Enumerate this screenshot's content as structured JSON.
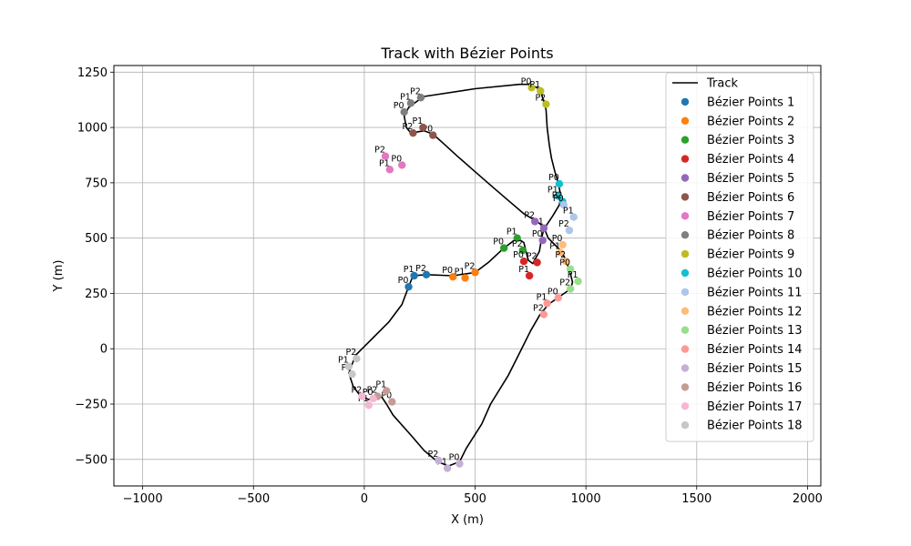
{
  "chart_data": {
    "type": "scatter",
    "title": "Track with Bézier Points",
    "xlabel": "X (m)",
    "ylabel": "Y (m)",
    "xlim": [
      -1130,
      2060
    ],
    "ylim": [
      -620,
      1280
    ],
    "xticks": [
      -1000,
      -500,
      0,
      500,
      1000,
      1500,
      2000
    ],
    "yticks": [
      -500,
      -250,
      0,
      250,
      500,
      750,
      1000,
      1250
    ],
    "grid": true,
    "legend_position": "top-right",
    "track": {
      "name": "Track",
      "color": "#000000",
      "points": [
        [
          200,
          280
        ],
        [
          220,
          330
        ],
        [
          280,
          335
        ],
        [
          400,
          330
        ],
        [
          500,
          345
        ],
        [
          560,
          390
        ],
        [
          630,
          455
        ],
        [
          690,
          500
        ],
        [
          720,
          480
        ],
        [
          740,
          400
        ],
        [
          760,
          385
        ],
        [
          790,
          440
        ],
        [
          800,
          500
        ],
        [
          810,
          540
        ],
        [
          850,
          600
        ],
        [
          880,
          650
        ],
        [
          885,
          700
        ],
        [
          875,
          750
        ],
        [
          860,
          800
        ],
        [
          845,
          860
        ],
        [
          835,
          920
        ],
        [
          825,
          1000
        ],
        [
          820,
          1080
        ],
        [
          800,
          1150
        ],
        [
          780,
          1180
        ],
        [
          740,
          1195
        ],
        [
          700,
          1195
        ],
        [
          500,
          1175
        ],
        [
          270,
          1140
        ],
        [
          240,
          1120
        ],
        [
          200,
          1090
        ],
        [
          180,
          1050
        ],
        [
          190,
          1000
        ],
        [
          210,
          975
        ],
        [
          270,
          985
        ],
        [
          310,
          970
        ],
        [
          360,
          925
        ],
        [
          420,
          870
        ],
        [
          500,
          800
        ],
        [
          580,
          730
        ],
        [
          650,
          670
        ],
        [
          720,
          610
        ],
        [
          780,
          575
        ],
        [
          810,
          550
        ],
        [
          830,
          500
        ],
        [
          860,
          470
        ],
        [
          890,
          440
        ],
        [
          910,
          400
        ],
        [
          930,
          340
        ],
        [
          940,
          300
        ],
        [
          930,
          270
        ],
        [
          880,
          235
        ],
        [
          830,
          200
        ],
        [
          790,
          150
        ],
        [
          750,
          80
        ],
        [
          700,
          -20
        ],
        [
          650,
          -120
        ],
        [
          570,
          -250
        ],
        [
          530,
          -340
        ],
        [
          460,
          -450
        ],
        [
          430,
          -510
        ],
        [
          380,
          -530
        ],
        [
          330,
          -510
        ],
        [
          270,
          -460
        ],
        [
          210,
          -390
        ],
        [
          130,
          -300
        ],
        [
          100,
          -250
        ],
        [
          80,
          -220
        ],
        [
          50,
          -210
        ],
        [
          20,
          -230
        ],
        [
          -20,
          -210
        ],
        [
          -50,
          -170
        ],
        [
          -70,
          -110
        ],
        [
          -40,
          -30
        ],
        [
          30,
          40
        ],
        [
          110,
          120
        ],
        [
          170,
          200
        ],
        [
          200,
          280
        ]
      ]
    },
    "series": [
      {
        "name": "Bézier Points 1",
        "color": "#1f77b4",
        "points": [
          [
            200,
            280,
            "P0"
          ],
          [
            225,
            330,
            "P1"
          ],
          [
            280,
            335,
            "P2"
          ]
        ]
      },
      {
        "name": "Bézier Points 2",
        "color": "#ff7f0e",
        "points": [
          [
            400,
            325,
            "P0"
          ],
          [
            455,
            320,
            "P1"
          ],
          [
            500,
            345,
            "P2"
          ]
        ]
      },
      {
        "name": "Bézier Points 3",
        "color": "#2ca02c",
        "points": [
          [
            630,
            455,
            "P0"
          ],
          [
            690,
            500,
            "P1"
          ],
          [
            715,
            445,
            "P2"
          ]
        ]
      },
      {
        "name": "Bézier Points 4",
        "color": "#d62728",
        "points": [
          [
            720,
            395,
            "P0"
          ],
          [
            745,
            330,
            "P1"
          ],
          [
            780,
            390,
            "P2"
          ]
        ]
      },
      {
        "name": "Bézier Points 5",
        "color": "#9467bd",
        "points": [
          [
            805,
            490,
            "P0"
          ],
          [
            810,
            545,
            "P1"
          ],
          [
            770,
            575,
            "P2"
          ]
        ]
      },
      {
        "name": "Bézier Points 6",
        "color": "#8c564b",
        "points": [
          [
            310,
            965,
            "P0"
          ],
          [
            265,
            1000,
            "P1"
          ],
          [
            220,
            975,
            "P2"
          ]
        ]
      },
      {
        "name": "Bézier Points 7",
        "color": "#e377c2",
        "points": [
          [
            170,
            830,
            "P0"
          ],
          [
            115,
            810,
            "P1"
          ],
          [
            95,
            870,
            "P2"
          ]
        ]
      },
      {
        "name": "Bézier Points 8",
        "color": "#7f7f7f",
        "points": [
          [
            180,
            1070,
            "P0"
          ],
          [
            210,
            1110,
            "P1"
          ],
          [
            255,
            1135,
            "P2"
          ]
        ]
      },
      {
        "name": "Bézier Points 9",
        "color": "#bcbd22",
        "points": [
          [
            755,
            1180,
            "P0"
          ],
          [
            795,
            1165,
            "P1"
          ],
          [
            820,
            1105,
            "P2"
          ]
        ]
      },
      {
        "name": "Bézier Points 10",
        "color": "#17becf",
        "points": [
          [
            880,
            745,
            "P0"
          ],
          [
            875,
            690,
            "P1"
          ],
          [
            895,
            665,
            "P2"
          ]
        ]
      },
      {
        "name": "Bézier Points 11",
        "color": "#aec7e8",
        "points": [
          [
            900,
            650,
            "P0"
          ],
          [
            945,
            595,
            "P1"
          ],
          [
            925,
            535,
            "P2"
          ]
        ]
      },
      {
        "name": "Bézier Points 12",
        "color": "#ffbb78",
        "points": [
          [
            895,
            470,
            "P0"
          ],
          [
            885,
            435,
            "P1"
          ],
          [
            910,
            395,
            "P2"
          ]
        ]
      },
      {
        "name": "Bézier Points 13",
        "color": "#98df8a",
        "points": [
          [
            930,
            360,
            "P0"
          ],
          [
            965,
            305,
            "P1"
          ],
          [
            930,
            270,
            "P2"
          ]
        ]
      },
      {
        "name": "Bézier Points 14",
        "color": "#ff9896",
        "points": [
          [
            875,
            230,
            "P0"
          ],
          [
            825,
            205,
            "P1"
          ],
          [
            810,
            155,
            "P2"
          ]
        ]
      },
      {
        "name": "Bézier Points 15",
        "color": "#c5b0d5",
        "points": [
          [
            430,
            -520,
            "P0"
          ],
          [
            375,
            -540,
            "P1"
          ],
          [
            335,
            -505,
            "P2"
          ]
        ]
      },
      {
        "name": "Bézier Points 16",
        "color": "#c49c94",
        "points": [
          [
            125,
            -240,
            "P0"
          ],
          [
            100,
            -190,
            "P1"
          ],
          [
            60,
            -215,
            "P2"
          ]
        ]
      },
      {
        "name": "Bézier Points 17",
        "color": "#f7b6d2",
        "points": [
          [
            40,
            -225,
            "P0"
          ],
          [
            20,
            -255,
            "P1"
          ],
          [
            -10,
            -215,
            "P2"
          ]
        ]
      },
      {
        "name": "Bézier Points 18",
        "color": "#c7c7c7",
        "points": [
          [
            -55,
            -115,
            "P0"
          ],
          [
            -70,
            -80,
            "P1"
          ],
          [
            -35,
            -45,
            "P2"
          ]
        ]
      }
    ]
  }
}
